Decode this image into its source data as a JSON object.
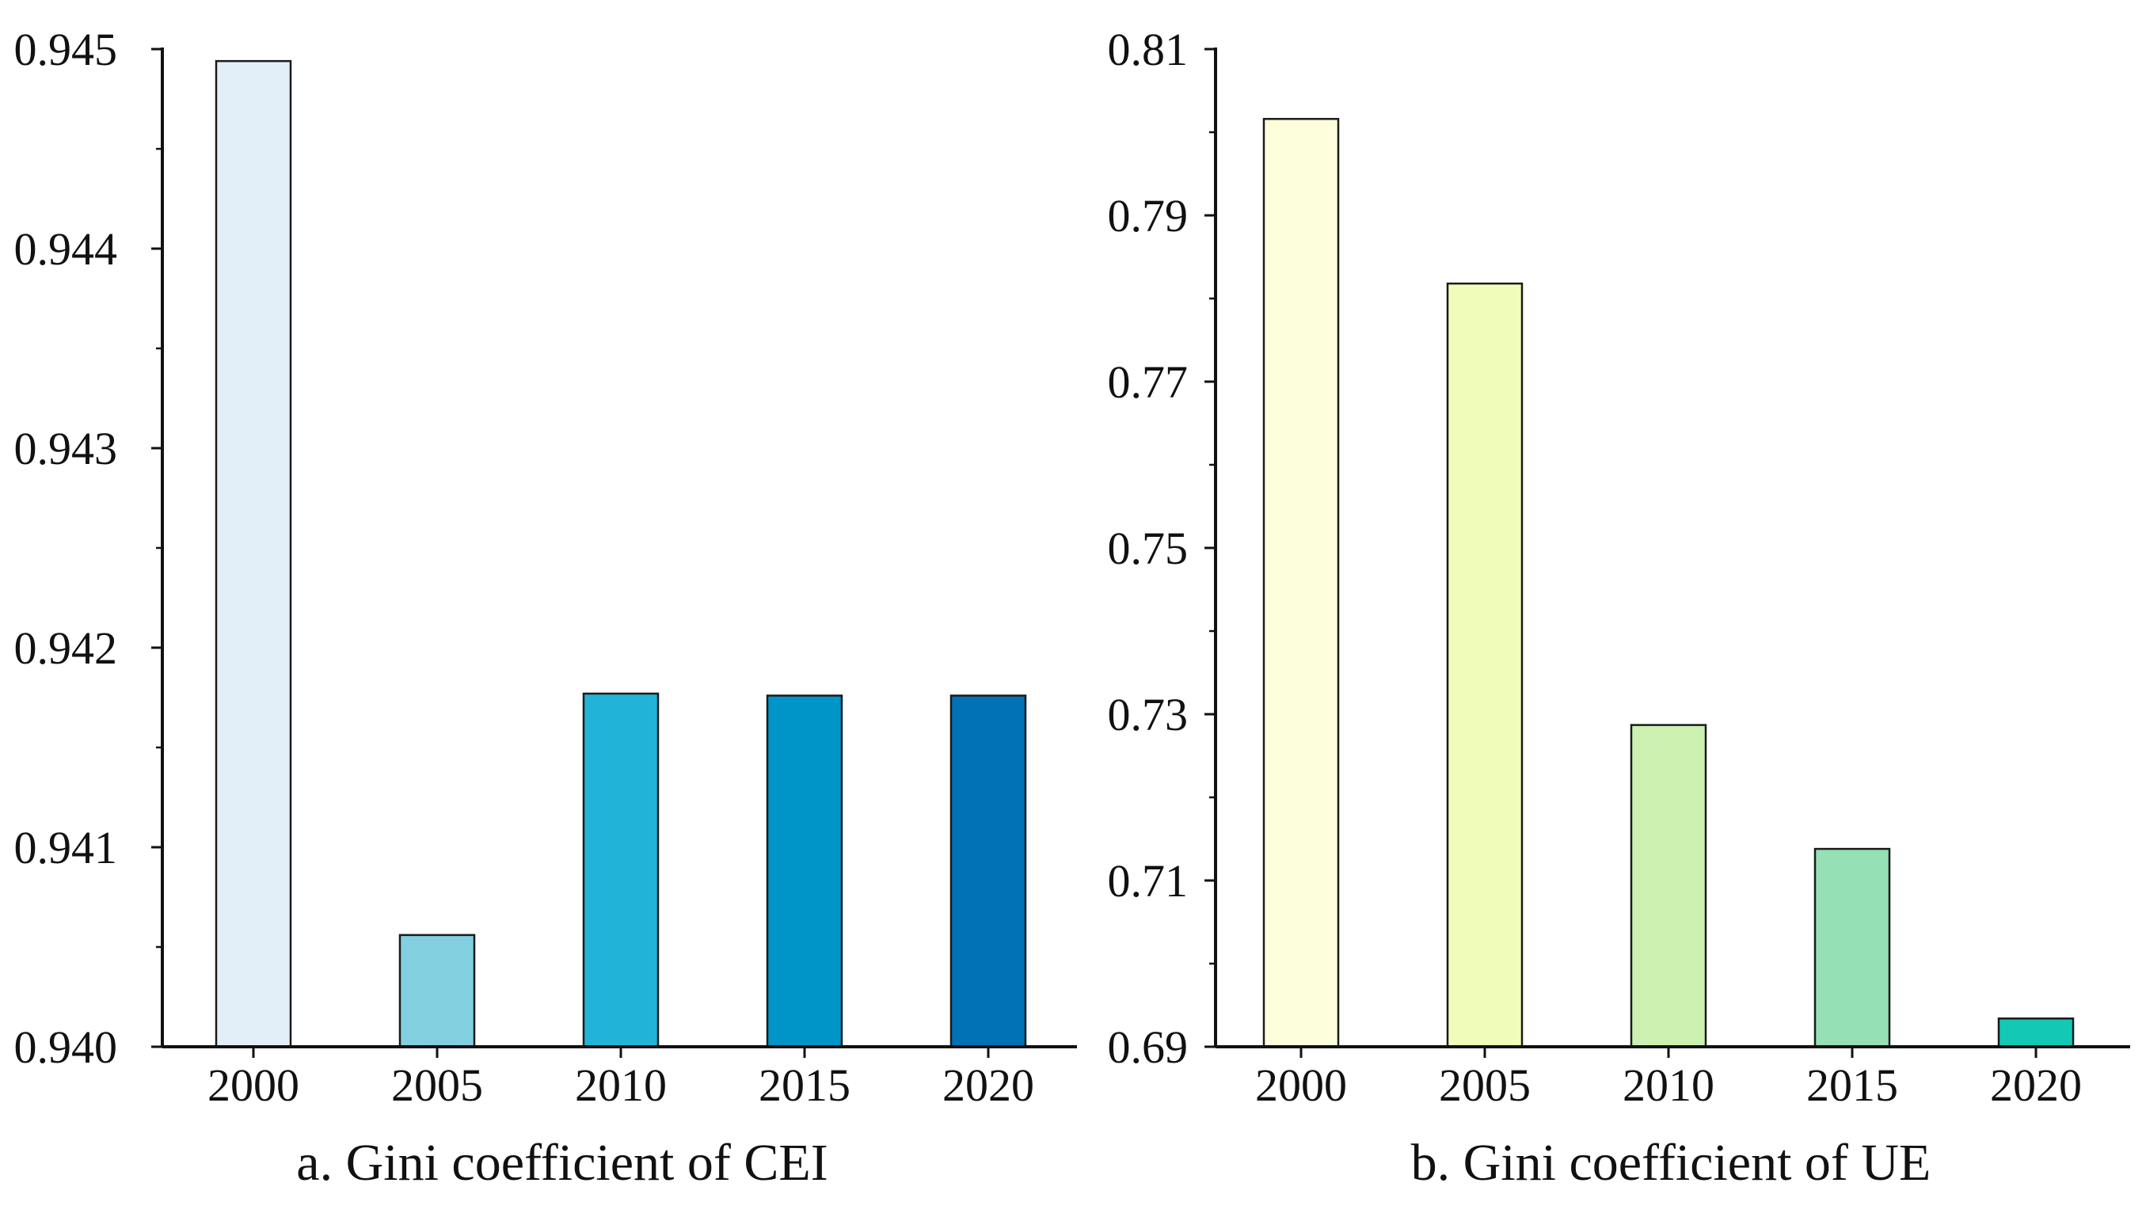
{
  "chart_data": [
    {
      "type": "bar",
      "caption": "a. Gini coefficient of CEI",
      "categories": [
        "2000",
        "2005",
        "2010",
        "2015",
        "2020"
      ],
      "values": [
        0.94494,
        0.94056,
        0.94177,
        0.94176,
        0.94176
      ],
      "colors": [
        "#e3eff8",
        "#82cfe0",
        "#22b4d8",
        "#0095c8",
        "#0071b5"
      ],
      "ylim": [
        0.94,
        0.945
      ],
      "yticks": [
        0.94,
        0.941,
        0.942,
        0.943,
        0.944,
        0.945
      ],
      "ytick_labels": [
        "0.940",
        "0.941",
        "0.942",
        "0.943",
        "0.944",
        "0.945"
      ],
      "xlabel": "",
      "ylabel": "",
      "grid": false
    },
    {
      "type": "bar",
      "caption": "b. Gini coefficient of UE",
      "categories": [
        "2000",
        "2005",
        "2010",
        "2015",
        "2020"
      ],
      "values": [
        0.8016,
        0.7818,
        0.7287,
        0.7138,
        0.6934
      ],
      "colors": [
        "#fdfedb",
        "#f0fdb8",
        "#cbf0b0",
        "#95e0b4",
        "#13c9b5"
      ],
      "ylim": [
        0.69,
        0.81
      ],
      "yticks": [
        0.69,
        0.71,
        0.73,
        0.75,
        0.77,
        0.79,
        0.81
      ],
      "ytick_labels": [
        "0.69",
        "0.71",
        "0.73",
        "0.75",
        "0.77",
        "0.79",
        "0.81"
      ],
      "xlabel": "",
      "ylabel": "",
      "grid": false
    }
  ]
}
